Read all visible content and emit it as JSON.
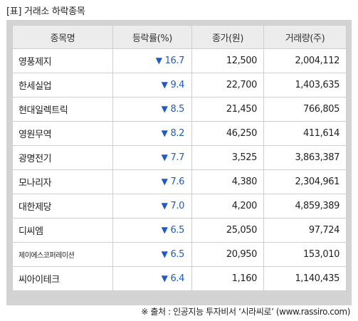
{
  "title": "[표] 거래소 하락종목",
  "colors": {
    "frame": "#d3d3d3",
    "header_bg": "#ececec",
    "down_blue": "#1e5bc6"
  },
  "down_arrow_icon": "down-triangle-icon",
  "table": {
    "headers": [
      "종목명",
      "등락률(%)",
      "종가(원)",
      "거래량(주)"
    ],
    "rows": [
      {
        "name": "영풍제지",
        "arrow": "▼",
        "rate": "16.7",
        "price": "12,500",
        "volume": "2,004,112"
      },
      {
        "name": "한세실업",
        "arrow": "▼",
        "rate": "9.4",
        "price": "22,700",
        "volume": "1,403,635"
      },
      {
        "name": "현대일렉트릭",
        "arrow": "▼",
        "rate": "8.5",
        "price": "21,450",
        "volume": "766,805"
      },
      {
        "name": "영원무역",
        "arrow": "▼",
        "rate": "8.2",
        "price": "46,250",
        "volume": "411,614"
      },
      {
        "name": "광명전기",
        "arrow": "▼",
        "rate": "7.7",
        "price": "3,525",
        "volume": "3,863,387"
      },
      {
        "name": "모나리자",
        "arrow": "▼",
        "rate": "7.6",
        "price": "4,380",
        "volume": "2,304,961"
      },
      {
        "name": "대한제당",
        "arrow": "▼",
        "rate": "7.0",
        "price": "4,200",
        "volume": "4,859,389"
      },
      {
        "name": "디씨엠",
        "arrow": "▼",
        "rate": "6.5",
        "price": "25,050",
        "volume": "97,724"
      },
      {
        "name": "제이에스코퍼레이션",
        "arrow": "▼",
        "rate": "6.5",
        "price": "20,950",
        "volume": "153,010"
      },
      {
        "name": "씨아이테크",
        "arrow": "▼",
        "rate": "6.4",
        "price": "1,160",
        "volume": "1,140,435"
      }
    ]
  },
  "source": "※ 출처 : 인공지능 투자비서 ‘시라씨로’ (www.rassiro.com)"
}
